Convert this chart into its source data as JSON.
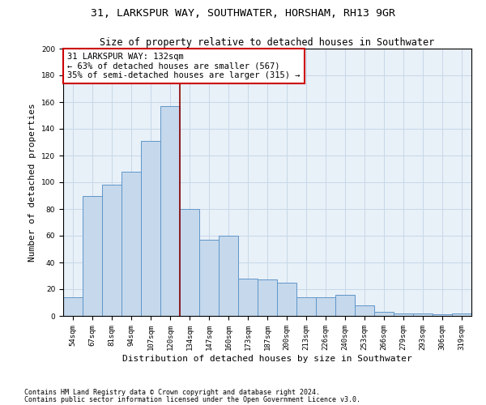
{
  "title": "31, LARKSPUR WAY, SOUTHWATER, HORSHAM, RH13 9GR",
  "subtitle": "Size of property relative to detached houses in Southwater",
  "xlabel": "Distribution of detached houses by size in Southwater",
  "ylabel": "Number of detached properties",
  "bar_labels": [
    "54sqm",
    "67sqm",
    "81sqm",
    "94sqm",
    "107sqm",
    "120sqm",
    "134sqm",
    "147sqm",
    "160sqm",
    "173sqm",
    "187sqm",
    "200sqm",
    "213sqm",
    "226sqm",
    "240sqm",
    "253sqm",
    "266sqm",
    "279sqm",
    "293sqm",
    "306sqm",
    "319sqm"
  ],
  "bar_heights": [
    14,
    90,
    98,
    108,
    131,
    157,
    80,
    57,
    60,
    28,
    27,
    25,
    14,
    14,
    16,
    8,
    3,
    2,
    2,
    1,
    2
  ],
  "bar_color": "#c5d8ec",
  "bar_edge_color": "#6096c8",
  "vline_color": "#8b0000",
  "annotation_text": "31 LARKSPUR WAY: 132sqm\n← 63% of detached houses are smaller (567)\n35% of semi-detached houses are larger (315) →",
  "annotation_box_color": "#ffffff",
  "annotation_box_edge": "#cc0000",
  "ylim": [
    0,
    200
  ],
  "yticks": [
    0,
    20,
    40,
    60,
    80,
    100,
    120,
    140,
    160,
    180,
    200
  ],
  "background_color": "#ffffff",
  "ax_background": "#e8f0f8",
  "grid_color": "#c8d8e8",
  "footnote1": "Contains HM Land Registry data © Crown copyright and database right 2024.",
  "footnote2": "Contains public sector information licensed under the Open Government Licence v3.0.",
  "title_fontsize": 9.5,
  "subtitle_fontsize": 8.5,
  "ylabel_fontsize": 8,
  "xlabel_fontsize": 8,
  "tick_fontsize": 6.5,
  "annotation_fontsize": 7.5,
  "footnote_fontsize": 6
}
